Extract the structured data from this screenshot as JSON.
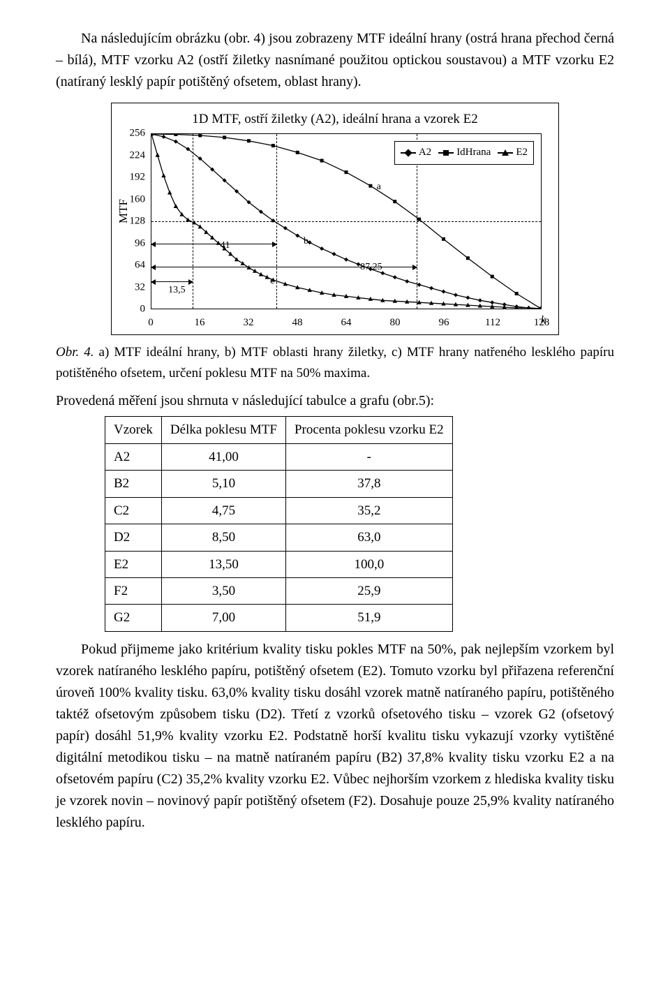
{
  "intro_paragraph": "Na následujícím obrázku (obr. 4) jsou zobrazeny MTF ideální hrany (ostrá hrana přechod černá – bílá), MTF vzorku A2 (ostří žiletky nasnímané použitou optickou soustavou) a MTF vzorku E2 (natíraný lesklý papír potištěný ofsetem, oblast hrany).",
  "chart": {
    "title": "1D MTF, ostří žiletky (A2), ideální hrana a vzorek E2",
    "y_label": "MTF",
    "x_ticks": [
      "0",
      "16",
      "32",
      "48",
      "64",
      "80",
      "96",
      "112",
      "128"
    ],
    "y_ticks": [
      "0",
      "32",
      "64",
      "96",
      "128",
      "160",
      "192",
      "224",
      "256"
    ],
    "k_label": "k",
    "legend": {
      "a": "A2",
      "b": "IdHrana",
      "c": "E2"
    },
    "annots": {
      "a": "a",
      "b": "b",
      "c": "c",
      "v41": "41",
      "v135": "13,5",
      "v8725": "87,25"
    },
    "y_min": 0,
    "y_max": 256,
    "x_min": 0,
    "x_max": 128,
    "guide_y": 128,
    "guide_x": [
      13.5,
      41,
      87.25
    ],
    "colors": {
      "series": "#000000",
      "grid": "#000000",
      "background": "#ffffff",
      "border": "#000000"
    },
    "series": {
      "IdHrana": {
        "points": [
          [
            0,
            256
          ],
          [
            8,
            255.5
          ],
          [
            16,
            254
          ],
          [
            24,
            251
          ],
          [
            32,
            246
          ],
          [
            40,
            239
          ],
          [
            48,
            229
          ],
          [
            56,
            217
          ],
          [
            64,
            200
          ],
          [
            72,
            180
          ],
          [
            80,
            157
          ],
          [
            88,
            131
          ],
          [
            96,
            102
          ],
          [
            104,
            74
          ],
          [
            112,
            47
          ],
          [
            120,
            22
          ],
          [
            128,
            0
          ]
        ],
        "marker": "square"
      },
      "A2": {
        "points": [
          [
            0,
            256
          ],
          [
            4,
            252
          ],
          [
            8,
            245
          ],
          [
            12,
            234
          ],
          [
            16,
            220
          ],
          [
            20,
            204
          ],
          [
            24,
            188
          ],
          [
            28,
            172
          ],
          [
            32,
            156
          ],
          [
            36,
            142
          ],
          [
            40,
            129
          ],
          [
            44,
            118
          ],
          [
            48,
            107
          ],
          [
            52,
            97
          ],
          [
            56,
            88
          ],
          [
            60,
            80
          ],
          [
            64,
            72
          ],
          [
            68,
            65
          ],
          [
            72,
            58
          ],
          [
            76,
            52
          ],
          [
            80,
            46
          ],
          [
            84,
            40
          ],
          [
            88,
            35
          ],
          [
            92,
            30
          ],
          [
            96,
            25
          ],
          [
            100,
            20
          ],
          [
            104,
            16
          ],
          [
            108,
            12
          ],
          [
            112,
            9
          ],
          [
            116,
            6
          ],
          [
            120,
            3
          ],
          [
            124,
            1
          ],
          [
            128,
            0
          ]
        ],
        "marker": "diamond"
      },
      "E2": {
        "points": [
          [
            0,
            256
          ],
          [
            2,
            225
          ],
          [
            4,
            195
          ],
          [
            6,
            170
          ],
          [
            8,
            150
          ],
          [
            10,
            138
          ],
          [
            12,
            130
          ],
          [
            14,
            126
          ],
          [
            16,
            120
          ],
          [
            18,
            112
          ],
          [
            20,
            104
          ],
          [
            22,
            96
          ],
          [
            24,
            88
          ],
          [
            26,
            80
          ],
          [
            28,
            72
          ],
          [
            30,
            66
          ],
          [
            32,
            60
          ],
          [
            34,
            55
          ],
          [
            36,
            50
          ],
          [
            38,
            46
          ],
          [
            40,
            42
          ],
          [
            44,
            36
          ],
          [
            48,
            31
          ],
          [
            52,
            27
          ],
          [
            56,
            23
          ],
          [
            60,
            20
          ],
          [
            64,
            18
          ],
          [
            68,
            16
          ],
          [
            72,
            14
          ],
          [
            76,
            12
          ],
          [
            80,
            11
          ],
          [
            84,
            10
          ],
          [
            88,
            9
          ],
          [
            92,
            8
          ],
          [
            96,
            7
          ],
          [
            100,
            6
          ],
          [
            104,
            5
          ],
          [
            108,
            4
          ],
          [
            112,
            3
          ],
          [
            116,
            2
          ],
          [
            120,
            1
          ],
          [
            124,
            1
          ],
          [
            128,
            0
          ]
        ],
        "marker": "triangle"
      }
    }
  },
  "caption": {
    "label": "Obr. 4.",
    "text": " a) MTF ideální hrany, b) MTF oblasti hrany žiletky, c) MTF hrany natřeného lesklého papíru potištěného ofsetem, určení poklesu MTF na 50% maxima."
  },
  "table_intro": "Provedená měření jsou shrnuta v následující tabulce a grafu (obr.5):",
  "table": {
    "headers": [
      "Vzorek",
      "Délka poklesu MTF",
      "Procenta poklesu vzorku E2"
    ],
    "rows": [
      [
        "A2",
        "41,00",
        "-"
      ],
      [
        "B2",
        "5,10",
        "37,8"
      ],
      [
        "C2",
        "4,75",
        "35,2"
      ],
      [
        "D2",
        "8,50",
        "63,0"
      ],
      [
        "E2",
        "13,50",
        "100,0"
      ],
      [
        "F2",
        "3,50",
        "25,9"
      ],
      [
        "G2",
        "7,00",
        "51,9"
      ]
    ]
  },
  "conclusion": "Pokud přijmeme jako kritérium kvality tisku pokles MTF na 50%, pak nejlepším vzorkem byl vzorek natíraného lesklého papíru, potištěný ofsetem (E2). Tomuto vzorku byl přiřazena referenční úroveň 100% kvality tisku. 63,0% kvality tisku dosáhl vzorek matně natíraného papíru, potištěného taktéž ofsetovým způsobem tisku (D2). Třetí z vzorků ofsetového tisku – vzorek G2 (ofsetový papír) dosáhl 51,9% kvality vzorku E2. Podstatně horší kvalitu tisku vykazují vzorky vytištěné digitální metodikou tisku – na matně natíraném papíru (B2) 37,8% kvality tisku vzorku E2 a na ofsetovém papíru (C2) 35,2% kvality vzorku E2. Vůbec nejhorším vzorkem z hlediska kvality tisku je vzorek novin – novinový papír potištěný ofsetem (F2). Dosahuje pouze 25,9% kvality natíraného lesklého papíru."
}
